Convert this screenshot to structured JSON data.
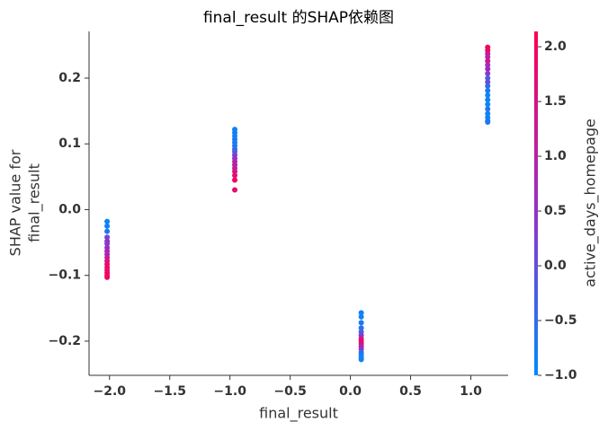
{
  "chart_data": {
    "type": "scatter",
    "title": "final_result 的SHAP依赖图",
    "xlabel": "final_result",
    "ylabel": [
      "SHAP value for",
      "final_result"
    ],
    "xlim": [
      -2.17,
      1.31
    ],
    "ylim": [
      -0.252,
      0.271
    ],
    "xticks": [
      {
        "value": -2.0,
        "label": "−2.0"
      },
      {
        "value": -1.5,
        "label": "−1.5"
      },
      {
        "value": -1.0,
        "label": "−1.0"
      },
      {
        "value": -0.5,
        "label": "−0.5"
      },
      {
        "value": 0.0,
        "label": "0.0"
      },
      {
        "value": 0.5,
        "label": "0.5"
      },
      {
        "value": 1.0,
        "label": "1.0"
      }
    ],
    "yticks": [
      {
        "value": -0.2,
        "label": "−0.2"
      },
      {
        "value": -0.1,
        "label": "−0.1"
      },
      {
        "value": 0.0,
        "label": "0.0"
      },
      0.1,
      0.2
    ],
    "colorbar": {
      "label": "active_days_homepage",
      "lim": [
        -1.0,
        2.14
      ],
      "ticks": [
        {
          "value": -1.0,
          "label": "−1.0"
        },
        {
          "value": -0.5,
          "label": "−0.5"
        },
        {
          "value": 0.0,
          "label": "0.0"
        },
        0.5,
        {
          "value": 1.0,
          "label": "1.0"
        },
        1.5,
        {
          "value": 2.0,
          "label": "2.0"
        }
      ],
      "colormap": [
        "#008bfb",
        "#9a2ec4",
        "#ff0052"
      ]
    },
    "x": [
      -2.02,
      -2.02,
      -2.02,
      -2.02,
      -2.02,
      -2.02,
      -2.02,
      -2.02,
      -2.02,
      -2.02,
      -2.02,
      -2.02,
      -2.02,
      -2.02,
      -2.02,
      -2.02,
      -2.02,
      -0.96,
      -0.96,
      -0.96,
      -0.96,
      -0.96,
      -0.96,
      -0.96,
      -0.96,
      -0.96,
      -0.96,
      -0.96,
      -0.96,
      -0.96,
      -0.96,
      -0.96,
      -0.96,
      -0.96,
      0.09,
      0.09,
      0.09,
      0.09,
      0.09,
      0.09,
      0.09,
      0.09,
      0.09,
      0.09,
      0.09,
      0.09,
      0.09,
      0.09,
      0.09,
      1.14,
      1.14,
      1.14,
      1.14,
      1.14,
      1.14,
      1.14,
      1.14,
      1.14,
      1.14,
      1.14,
      1.14,
      1.14,
      1.14,
      1.14,
      1.14,
      1.14,
      1.14,
      1.14,
      1.14
    ],
    "values": [
      -0.018,
      -0.025,
      -0.033,
      -0.042,
      -0.048,
      -0.052,
      -0.058,
      -0.063,
      -0.068,
      -0.073,
      -0.078,
      -0.083,
      -0.088,
      -0.092,
      -0.096,
      -0.1,
      -0.103,
      0.122,
      0.117,
      0.112,
      0.107,
      0.102,
      0.097,
      0.092,
      0.088,
      0.083,
      0.078,
      0.073,
      0.068,
      0.063,
      0.058,
      0.052,
      0.045,
      0.03,
      -0.157,
      -0.163,
      -0.172,
      -0.18,
      -0.186,
      -0.191,
      -0.196,
      -0.2,
      -0.204,
      -0.208,
      -0.212,
      -0.217,
      -0.221,
      -0.225,
      -0.228,
      0.247,
      0.242,
      0.237,
      0.232,
      0.226,
      0.22,
      0.214,
      0.207,
      0.2,
      0.194,
      0.188,
      0.181,
      0.174,
      0.167,
      0.16,
      0.153,
      0.146,
      0.14,
      0.135,
      0.133
    ],
    "color_values": [
      -0.9,
      -0.8,
      -0.7,
      0.2,
      0.5,
      0.3,
      0.6,
      0.9,
      0.7,
      1.2,
      1.5,
      1.8,
      2.0,
      1.6,
      1.9,
      2.1,
      1.8,
      -0.9,
      -0.8,
      -0.9,
      -0.6,
      -0.8,
      -0.7,
      -0.5,
      -0.3,
      0.2,
      0.5,
      0.8,
      1.2,
      1.0,
      1.5,
      1.7,
      2.0,
      1.8,
      -0.9,
      -0.8,
      -0.7,
      -0.6,
      -0.4,
      0.4,
      1.2,
      1.8,
      1.5,
      0.9,
      0.5,
      -0.5,
      -0.7,
      -0.9,
      -0.8,
      1.9,
      2.0,
      1.3,
      0.9,
      1.5,
      0.6,
      0.8,
      0.3,
      -0.2,
      0.1,
      -0.5,
      -0.7,
      -0.9,
      -0.8,
      -0.9,
      -0.6,
      -0.9,
      -0.8,
      -0.9,
      -0.7
    ]
  }
}
